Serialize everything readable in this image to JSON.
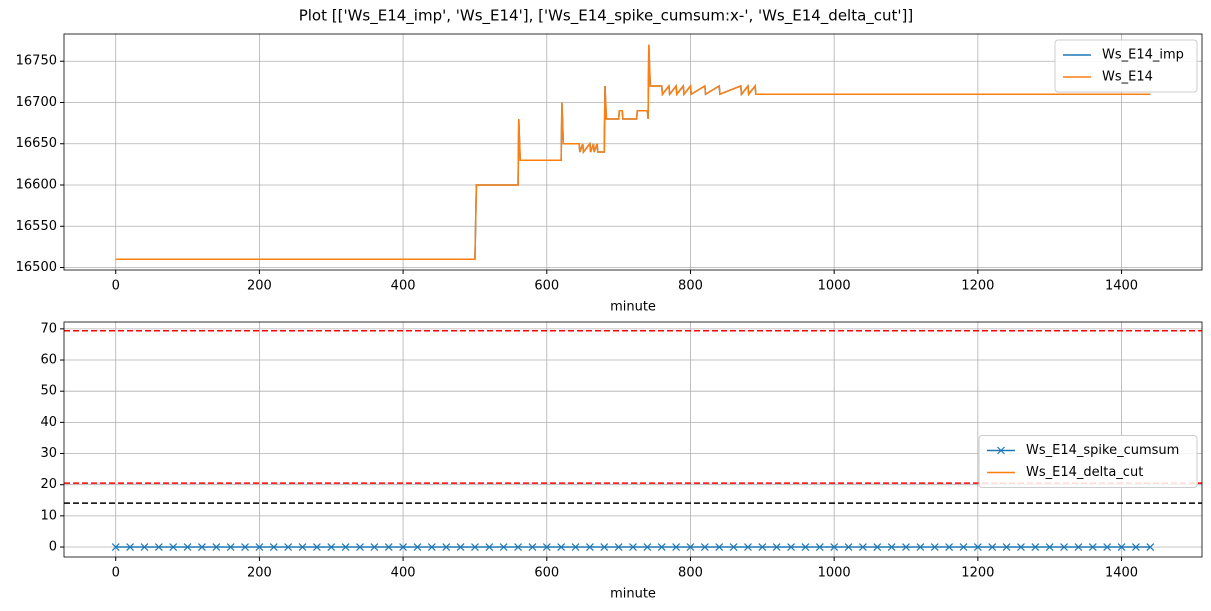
{
  "title": "Plot [['Ws_E14_imp', 'Ws_E14'], ['Ws_E14_spike_cumsum:x-', 'Ws_E14_delta_cut']]",
  "chart_data": [
    {
      "type": "line",
      "xlabel": "minute",
      "grid": true,
      "legend": "upper right",
      "xlim": [
        -72,
        1512
      ],
      "xticks": [
        0,
        200,
        400,
        600,
        800,
        1000,
        1200,
        1400
      ],
      "ylim": [
        16497,
        16783
      ],
      "yticks": [
        16500,
        16550,
        16600,
        16650,
        16700,
        16750
      ],
      "x": [
        0,
        500,
        502,
        560,
        561,
        563,
        620,
        621,
        623,
        645,
        646,
        650,
        651,
        660,
        661,
        665,
        666,
        670,
        671,
        680,
        681,
        683,
        700,
        701,
        705,
        706,
        725,
        726,
        740,
        741,
        742,
        744,
        760,
        761,
        770,
        771,
        780,
        781,
        790,
        791,
        800,
        801,
        820,
        821,
        840,
        841,
        870,
        871,
        880,
        881,
        890,
        891,
        1440
      ],
      "series": [
        {
          "name": "Ws_E14_imp",
          "color": "#1f77b4",
          "values": [
            16510,
            16510,
            16600,
            16600,
            16680,
            16630,
            16630,
            16700,
            16650,
            16650,
            16640,
            16650,
            16640,
            16650,
            16640,
            16650,
            16640,
            16650,
            16640,
            16640,
            16720,
            16680,
            16680,
            16690,
            16690,
            16680,
            16680,
            16690,
            16690,
            16680,
            16770,
            16720,
            16720,
            16710,
            16720,
            16710,
            16720,
            16710,
            16720,
            16710,
            16720,
            16710,
            16720,
            16710,
            16720,
            16710,
            16720,
            16710,
            16720,
            16710,
            16720,
            16710,
            16710
          ]
        },
        {
          "name": "Ws_E14",
          "color": "#ff7f0e",
          "values": [
            16510,
            16510,
            16600,
            16600,
            16680,
            16630,
            16630,
            16700,
            16650,
            16650,
            16640,
            16650,
            16640,
            16650,
            16640,
            16650,
            16640,
            16650,
            16640,
            16640,
            16720,
            16680,
            16680,
            16690,
            16690,
            16680,
            16680,
            16690,
            16690,
            16680,
            16770,
            16720,
            16720,
            16710,
            16720,
            16710,
            16720,
            16710,
            16720,
            16710,
            16720,
            16710,
            16720,
            16710,
            16720,
            16710,
            16720,
            16710,
            16720,
            16710,
            16720,
            16710,
            16710
          ]
        }
      ]
    },
    {
      "type": "line",
      "xlabel": "minute",
      "grid": true,
      "legend": "center right",
      "xlim": [
        -72,
        1512
      ],
      "xticks": [
        0,
        200,
        400,
        600,
        800,
        1000,
        1200,
        1400
      ],
      "ylim": [
        -3.2,
        72.2
      ],
      "yticks": [
        0,
        10,
        20,
        30,
        40,
        50,
        60,
        70
      ],
      "hlines": [
        {
          "value": 69.4,
          "color": "#ff0000"
        },
        {
          "value": 20.5,
          "color": "#ff0000"
        },
        {
          "value": 14.1,
          "color": "#000000"
        }
      ],
      "x": [
        0,
        20,
        40,
        60,
        80,
        100,
        120,
        140,
        160,
        180,
        200,
        220,
        240,
        260,
        280,
        300,
        320,
        340,
        360,
        380,
        400,
        420,
        440,
        460,
        480,
        500,
        520,
        540,
        560,
        580,
        600,
        620,
        640,
        660,
        680,
        700,
        720,
        740,
        760,
        780,
        800,
        820,
        840,
        860,
        880,
        900,
        920,
        940,
        960,
        980,
        1000,
        1020,
        1040,
        1060,
        1080,
        1100,
        1120,
        1140,
        1160,
        1180,
        1200,
        1220,
        1240,
        1260,
        1280,
        1300,
        1320,
        1340,
        1360,
        1380,
        1400,
        1420,
        1440
      ],
      "series": [
        {
          "name": "Ws_E14_spike_cumsum",
          "color": "#1f77b4",
          "marker": "x",
          "values": [
            0,
            0,
            0,
            0,
            0,
            0,
            0,
            0,
            0,
            0,
            0,
            0,
            0,
            0,
            0,
            0,
            0,
            0,
            0,
            0,
            0,
            0,
            0,
            0,
            0,
            0,
            0,
            0,
            0,
            0,
            0,
            0,
            0,
            0,
            0,
            0,
            0,
            0,
            0,
            0,
            0,
            0,
            0,
            0,
            0,
            0,
            0,
            0,
            0,
            0,
            0,
            0,
            0,
            0,
            0,
            0,
            0,
            0,
            0,
            0,
            0,
            0,
            0,
            0,
            0,
            0,
            0,
            0,
            0,
            0,
            0,
            0,
            0
          ]
        },
        {
          "name": "Ws_E14_delta_cut",
          "color": "#ff7f0e",
          "values": [
            null,
            null,
            null,
            null,
            null,
            null,
            null,
            null,
            null,
            null,
            null,
            null,
            null,
            null,
            null,
            null,
            null,
            null,
            null,
            null,
            null,
            null,
            null,
            null,
            null,
            null,
            null,
            null,
            null,
            null,
            null,
            null,
            null,
            null,
            null,
            null,
            null,
            null,
            null,
            null,
            null,
            null,
            null,
            null,
            null,
            null,
            null,
            null,
            null,
            null,
            null,
            null,
            null,
            null,
            null,
            null,
            null,
            null,
            null,
            null,
            null,
            null,
            null,
            null,
            null,
            null,
            null,
            null,
            null,
            null,
            null,
            null,
            null
          ]
        }
      ]
    }
  ]
}
